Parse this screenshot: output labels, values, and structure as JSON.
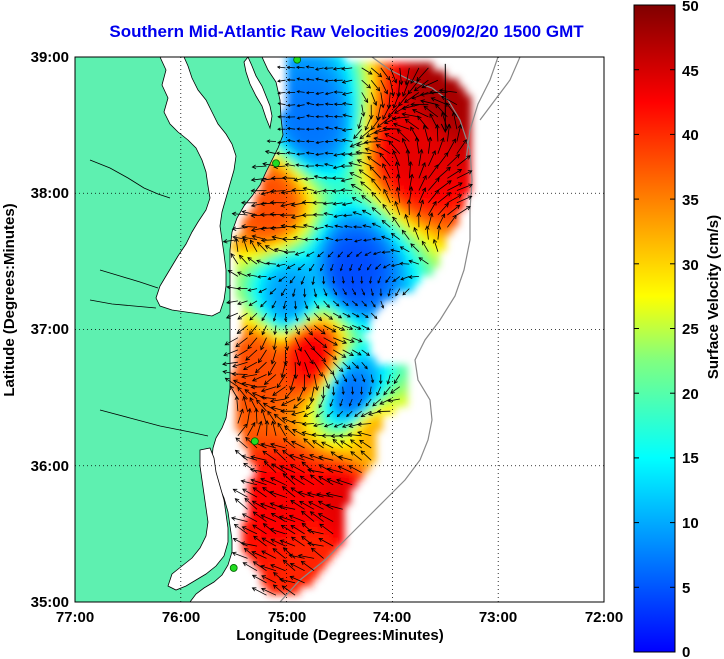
{
  "title": "Southern Mid-Atlantic Raw Velocities 2009/02/20 1500 GMT",
  "x_axis": {
    "label": "Longitude (Degrees:Minutes)",
    "ticks": [
      "77:00",
      "76:00",
      "75:00",
      "74:00",
      "73:00",
      "72:00"
    ]
  },
  "y_axis": {
    "label": "Latitude (Degrees:Minutes)",
    "ticks": [
      "39:00",
      "38:00",
      "37:00",
      "36:00",
      "35:00"
    ]
  },
  "colorbar": {
    "label": "Surface Velocity (cm/s)",
    "ticks": [
      "50",
      "45",
      "40",
      "35",
      "30",
      "25",
      "20",
      "15",
      "10",
      "5",
      "0"
    ],
    "range": [
      0,
      50
    ],
    "colormap": "jet"
  },
  "map": {
    "lon_range": [
      -77,
      -72
    ],
    "lat_range": [
      35,
      39
    ],
    "land_color": "#5ef0b0",
    "grid": "dotted",
    "stations": [
      {
        "lon": -74.9,
        "lat": 38.98
      },
      {
        "lon": -75.1,
        "lat": 38.22
      },
      {
        "lon": -75.3,
        "lat": 36.18
      },
      {
        "lon": -75.5,
        "lat": 35.25
      }
    ]
  },
  "chart_data": {
    "type": "heatmap",
    "title": "Southern Mid-Atlantic Raw Velocities 2009/02/20 1500 GMT",
    "xlabel": "Longitude (Degrees:Minutes)",
    "ylabel": "Latitude (Degrees:Minutes)",
    "xlim": [
      -77,
      -72
    ],
    "ylim": [
      35,
      39
    ],
    "colorbar_label": "Surface Velocity (cm/s)",
    "clim": [
      0,
      50
    ],
    "field_samples": [
      {
        "lon": -73.5,
        "lat": 38.7,
        "speed": 48
      },
      {
        "lon": -73.8,
        "lat": 38.3,
        "speed": 45
      },
      {
        "lon": -74.8,
        "lat": 38.5,
        "speed": 12
      },
      {
        "lon": -75.2,
        "lat": 37.9,
        "speed": 40
      },
      {
        "lon": -74.4,
        "lat": 37.4,
        "speed": 10
      },
      {
        "lon": -75.0,
        "lat": 37.2,
        "speed": 14
      },
      {
        "lon": -74.8,
        "lat": 36.8,
        "speed": 44
      },
      {
        "lon": -75.3,
        "lat": 36.7,
        "speed": 40
      },
      {
        "lon": -74.4,
        "lat": 36.5,
        "speed": 12
      },
      {
        "lon": -74.2,
        "lat": 36.2,
        "speed": 35
      },
      {
        "lon": -74.5,
        "lat": 35.7,
        "speed": 45
      },
      {
        "lon": -75.0,
        "lat": 35.7,
        "speed": 44
      },
      {
        "lon": -74.8,
        "lat": 35.3,
        "speed": 42
      }
    ]
  }
}
